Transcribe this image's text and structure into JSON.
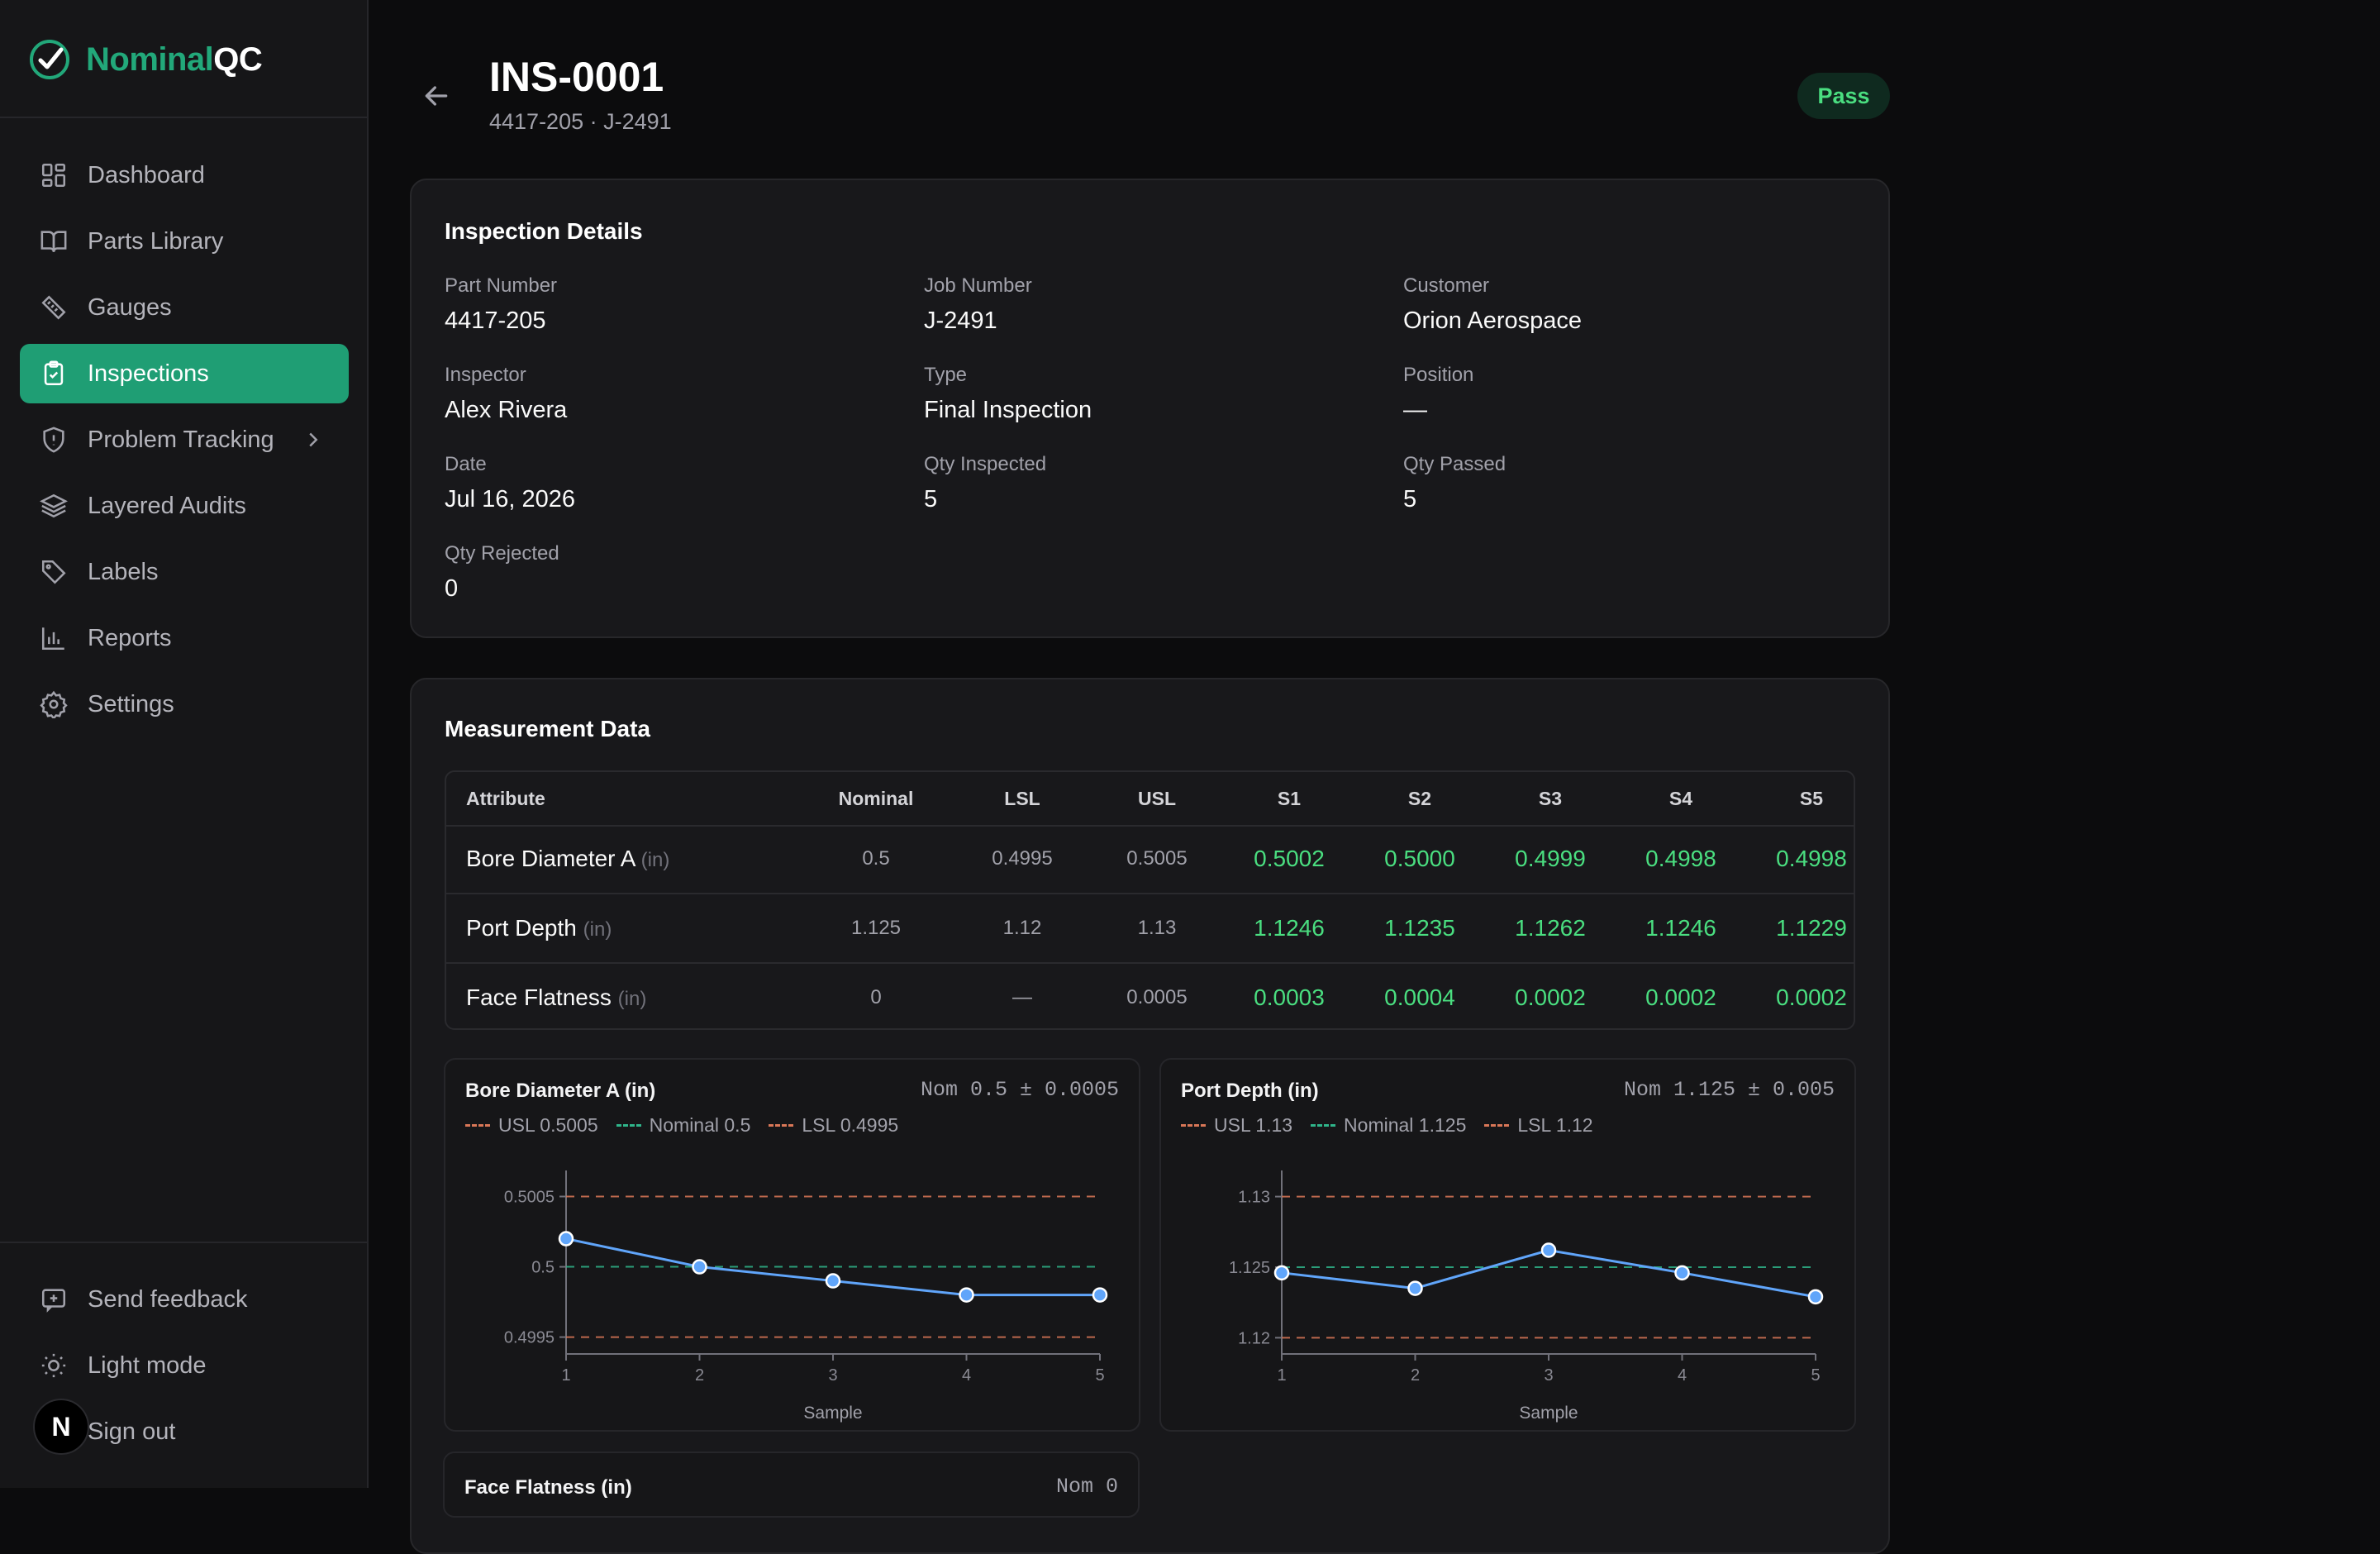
{
  "app": {
    "brand_a": "Nominal",
    "brand_b": "QC"
  },
  "sidebar": {
    "items": [
      {
        "label": "Dashboard",
        "icon": "dashboard-icon"
      },
      {
        "label": "Parts Library",
        "icon": "book-icon"
      },
      {
        "label": "Gauges",
        "icon": "ruler-icon"
      },
      {
        "label": "Inspections",
        "icon": "clipboard-check-icon",
        "active": true
      },
      {
        "label": "Problem Tracking",
        "icon": "shield-alert-icon",
        "chevron": true
      },
      {
        "label": "Layered Audits",
        "icon": "layers-icon"
      },
      {
        "label": "Labels",
        "icon": "tag-icon"
      },
      {
        "label": "Reports",
        "icon": "bar-chart-icon"
      },
      {
        "label": "Settings",
        "icon": "gear-icon"
      }
    ],
    "bottom": [
      {
        "label": "Send feedback",
        "icon": "feedback-icon"
      },
      {
        "label": "Light mode",
        "icon": "sun-icon"
      },
      {
        "label": "Sign out",
        "icon": "logout-icon"
      }
    ],
    "avatar_letter": "N"
  },
  "header": {
    "title": "INS-0001",
    "subtitle": "4417-205 · J-2491",
    "status": "Pass"
  },
  "details": {
    "title": "Inspection Details",
    "fields": [
      {
        "label": "Part Number",
        "value": "4417-205"
      },
      {
        "label": "Job Number",
        "value": "J-2491"
      },
      {
        "label": "Customer",
        "value": "Orion Aerospace"
      },
      {
        "label": "Inspector",
        "value": "Alex Rivera"
      },
      {
        "label": "Type",
        "value": "Final Inspection"
      },
      {
        "label": "Position",
        "value": "—"
      },
      {
        "label": "Date",
        "value": "Jul 16, 2026"
      },
      {
        "label": "Qty Inspected",
        "value": "5"
      },
      {
        "label": "Qty Passed",
        "value": "5"
      },
      {
        "label": "Qty Rejected",
        "value": "0"
      }
    ]
  },
  "measurements": {
    "title": "Measurement Data",
    "columns": [
      "Attribute",
      "Nominal",
      "LSL",
      "USL",
      "S1",
      "S2",
      "S3",
      "S4",
      "S5"
    ],
    "rows": [
      {
        "attribute": "Bore Diameter A",
        "unit": "(in)",
        "nominal": "0.5",
        "lsl": "0.4995",
        "usl": "0.5005",
        "samples": [
          "0.5002",
          "0.5000",
          "0.4999",
          "0.4998",
          "0.4998"
        ]
      },
      {
        "attribute": "Port Depth",
        "unit": "(in)",
        "nominal": "1.125",
        "lsl": "1.12",
        "usl": "1.13",
        "samples": [
          "1.1246",
          "1.1235",
          "1.1262",
          "1.1246",
          "1.1229"
        ]
      },
      {
        "attribute": "Face Flatness",
        "unit": "(in)",
        "nominal": "0",
        "lsl": "—",
        "usl": "0.0005",
        "samples": [
          "0.0003",
          "0.0004",
          "0.0002",
          "0.0002",
          "0.0002"
        ]
      }
    ]
  },
  "chart_data": [
    {
      "type": "line",
      "title": "Bore Diameter A (in)",
      "nominal_text": "Nom 0.5 ± 0.0005",
      "legend": {
        "usl": "USL 0.5005",
        "nominal": "Nominal 0.5",
        "lsl": "LSL 0.4995"
      },
      "x": [
        1,
        2,
        3,
        4,
        5
      ],
      "y": [
        0.5002,
        0.5,
        0.4999,
        0.4998,
        0.4998
      ],
      "usl": 0.5005,
      "nominal": 0.5,
      "lsl": 0.4995,
      "ylim": [
        0.49938,
        0.50065
      ],
      "yticks": [
        "0.4995",
        "0.5",
        "0.5005"
      ],
      "xlabel": "Sample",
      "colors": {
        "line": "#60a5fa",
        "usl": "#d97757",
        "lsl": "#d97757",
        "nominal": "#2fb58a",
        "axis": "#71717a"
      }
    },
    {
      "type": "line",
      "title": "Port Depth (in)",
      "nominal_text": "Nom 1.125 ± 0.005",
      "legend": {
        "usl": "USL 1.13",
        "nominal": "Nominal 1.125",
        "lsl": "LSL 1.12"
      },
      "x": [
        1,
        2,
        3,
        4,
        5
      ],
      "y": [
        1.1246,
        1.1235,
        1.1262,
        1.1246,
        1.1229
      ],
      "usl": 1.13,
      "nominal": 1.125,
      "lsl": 1.12,
      "ylim": [
        1.11885,
        1.1315
      ],
      "yticks": [
        "1.12",
        "1.125",
        "1.13"
      ],
      "xlabel": "Sample",
      "colors": {
        "line": "#60a5fa",
        "usl": "#d97757",
        "lsl": "#d97757",
        "nominal": "#2fb58a",
        "axis": "#71717a"
      }
    },
    {
      "type": "line",
      "title": "Face Flatness (in)",
      "nominal_text": "Nom 0"
    }
  ]
}
